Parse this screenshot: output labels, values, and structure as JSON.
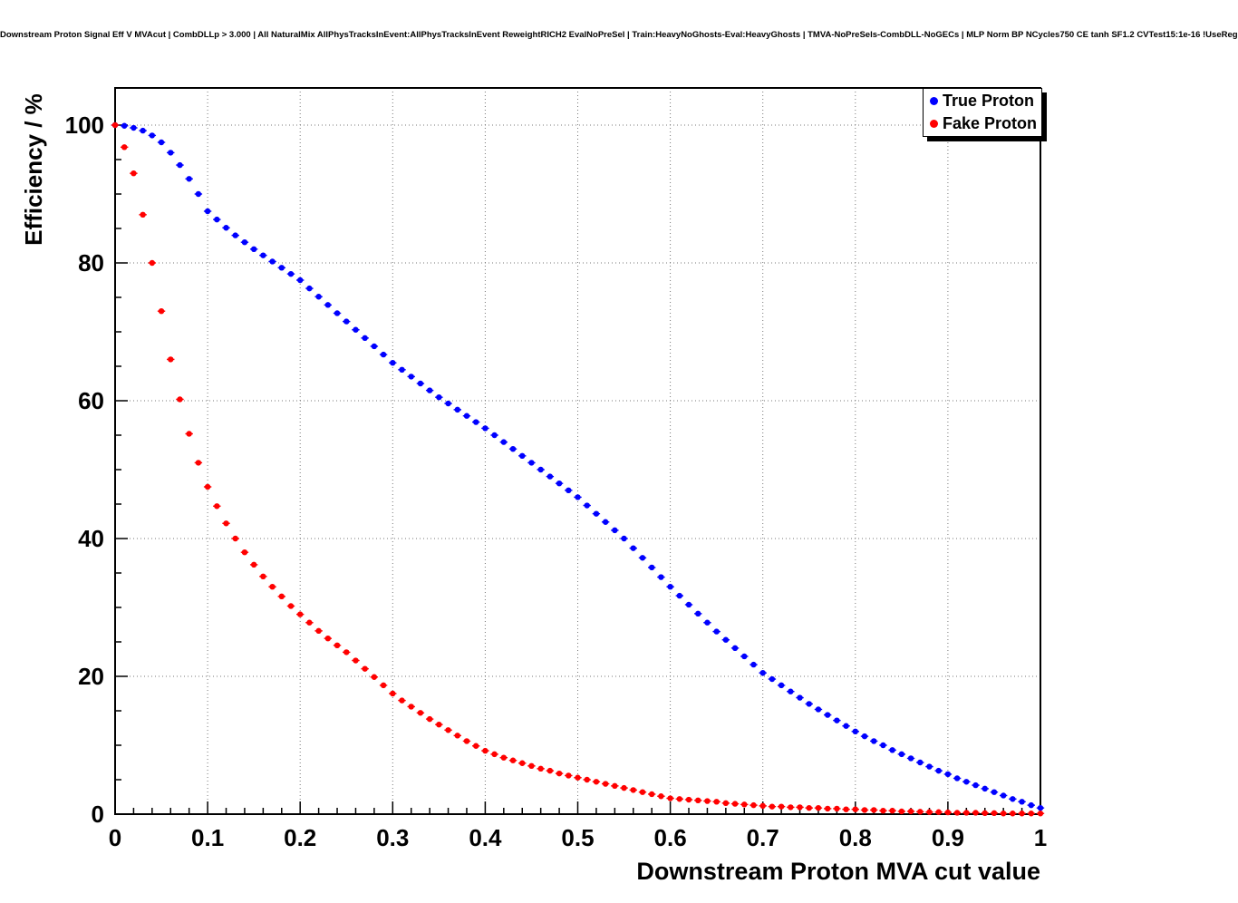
{
  "chart_data": {
    "type": "scatter",
    "title": "Downstream Proton Signal Eff V MVAcut | CombDLLp > 3.000 | All NaturalMix AllPhysTracksInEvent:AllPhysTracksInEvent ReweightRICH2 EvalNoPreSel | Train:HeavyNoGhosts-Eval:HeavyGhosts | TMVA-NoPreSels-CombDLL-NoGECs | MLP Norm BP NCycles750 CE tanh SF1.2 CVTest15:1e-16 !UseReg",
    "xlabel": "Downstream Proton MVA cut value",
    "ylabel": "Efficiency / %",
    "xlim": [
      0,
      1
    ],
    "ylim": [
      0,
      105.4
    ],
    "x_ticks": [
      0,
      0.1,
      0.2,
      0.3,
      0.4,
      0.5,
      0.6,
      0.7,
      0.8,
      0.9,
      1
    ],
    "y_ticks": [
      0,
      20,
      40,
      60,
      80,
      100
    ],
    "grid": "dotted",
    "legend_position": "top-right",
    "marker": "filled-circle",
    "x": [
      0,
      0.01,
      0.02,
      0.03,
      0.04,
      0.05,
      0.06,
      0.07,
      0.08,
      0.09,
      0.1,
      0.11,
      0.12,
      0.13,
      0.14,
      0.15,
      0.16,
      0.17,
      0.18,
      0.19,
      0.2,
      0.21,
      0.22,
      0.23,
      0.24,
      0.25,
      0.26,
      0.27,
      0.28,
      0.29,
      0.3,
      0.31,
      0.32,
      0.33,
      0.34,
      0.35,
      0.36,
      0.37,
      0.38,
      0.39,
      0.4,
      0.41,
      0.42,
      0.43,
      0.44,
      0.45,
      0.46,
      0.47,
      0.48,
      0.49,
      0.5,
      0.51,
      0.52,
      0.53,
      0.54,
      0.55,
      0.56,
      0.57,
      0.58,
      0.59,
      0.6,
      0.61,
      0.62,
      0.63,
      0.64,
      0.65,
      0.66,
      0.67,
      0.68,
      0.69,
      0.7,
      0.71,
      0.72,
      0.73,
      0.74,
      0.75,
      0.76,
      0.77,
      0.78,
      0.79,
      0.8,
      0.81,
      0.82,
      0.83,
      0.84,
      0.85,
      0.86,
      0.87,
      0.88,
      0.89,
      0.9,
      0.91,
      0.92,
      0.93,
      0.94,
      0.95,
      0.96,
      0.97,
      0.98,
      0.99,
      1
    ],
    "series": [
      {
        "name": "True Proton",
        "color": "#0000ff",
        "values": [
          100,
          99.9,
          99.6,
          99.2,
          98.5,
          97.5,
          96,
          94.2,
          92.2,
          90,
          87.5,
          86.3,
          85.1,
          84,
          83,
          82,
          81.1,
          80.2,
          79.3,
          78.4,
          77.5,
          76.3,
          75.1,
          73.9,
          72.7,
          71.5,
          70.3,
          69.1,
          67.9,
          66.7,
          65.5,
          64.5,
          63.5,
          62.5,
          61.5,
          60.5,
          59.6,
          58.7,
          57.8,
          56.9,
          56,
          55,
          54,
          53,
          52,
          51,
          50,
          49,
          48,
          47,
          46,
          44.8,
          43.6,
          42.4,
          41.2,
          40,
          38.6,
          37.2,
          35.8,
          34.4,
          33,
          31.7,
          30.4,
          29.1,
          27.8,
          26.5,
          25.3,
          24.1,
          22.9,
          21.7,
          20.5,
          19.6,
          18.7,
          17.8,
          16.9,
          16,
          15.2,
          14.4,
          13.6,
          12.8,
          12,
          11.3,
          10.6,
          10,
          9.3,
          8.7,
          8.1,
          7.5,
          6.9,
          6.3,
          5.8,
          5.2,
          4.7,
          4.2,
          3.7,
          3.2,
          2.7,
          2.2,
          1.8,
          1.3,
          0.9
        ]
      },
      {
        "name": "Fake Proton",
        "color": "#ff0000",
        "values": [
          100,
          96.8,
          93,
          87,
          80,
          73,
          66,
          60.2,
          55.2,
          51,
          47.5,
          44.7,
          42.2,
          40,
          38,
          36.2,
          34.5,
          33,
          31.6,
          30.2,
          29,
          27.8,
          26.6,
          25.5,
          24.5,
          23.5,
          22.3,
          21.1,
          19.9,
          18.7,
          17.5,
          16.5,
          15.6,
          14.7,
          13.8,
          13,
          12.2,
          11.4,
          10.6,
          9.9,
          9.2,
          8.7,
          8.2,
          7.8,
          7.4,
          7,
          6.6,
          6.3,
          5.9,
          5.6,
          5.3,
          5,
          4.7,
          4.4,
          4.1,
          3.8,
          3.5,
          3.2,
          2.9,
          2.6,
          2.3,
          2.2,
          2.1,
          2,
          1.9,
          1.8,
          1.6,
          1.5,
          1.4,
          1.3,
          1.2,
          1.1,
          1.1,
          1,
          1,
          0.9,
          0.9,
          0.8,
          0.8,
          0.7,
          0.7,
          0.6,
          0.6,
          0.5,
          0.5,
          0.4,
          0.4,
          0.35,
          0.3,
          0.3,
          0.25,
          0.2,
          0.2,
          0.2,
          0.15,
          0.15,
          0.1,
          0.1,
          0.1,
          0.1,
          0.1
        ]
      }
    ]
  }
}
